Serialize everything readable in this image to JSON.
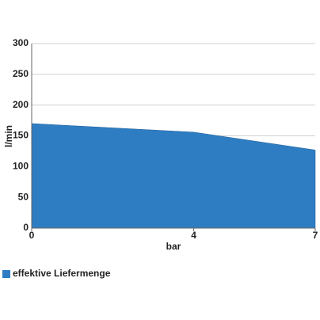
{
  "chart_data": {
    "type": "area",
    "x_label": "bar",
    "y_label": "l/min",
    "x": [
      0,
      4,
      7
    ],
    "series": [
      {
        "name": "effektive Liefermenge",
        "color": "#2e7dc2",
        "values": [
          170,
          156,
          127
        ]
      }
    ],
    "xlim": [
      0,
      7
    ],
    "xticks": [
      0,
      4,
      7
    ],
    "ylim": [
      0,
      300
    ],
    "yticks": [
      0,
      50,
      100,
      150,
      200,
      250,
      300
    ],
    "grid": true,
    "legend": "bottom-left"
  }
}
